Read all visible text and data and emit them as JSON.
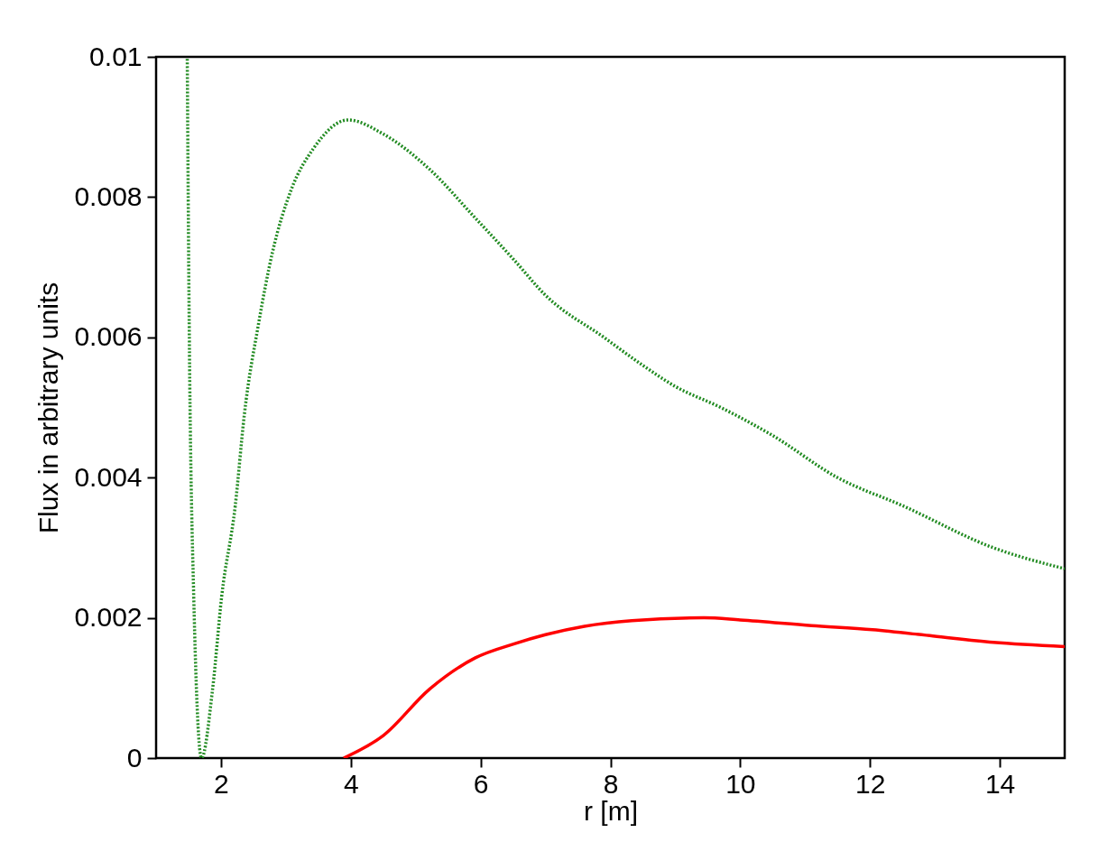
{
  "chart_data": {
    "type": "line",
    "xlabel": "r [m]",
    "ylabel": "Flux in arbitrary units",
    "xlim": [
      1,
      15
    ],
    "xticks": [
      2,
      4,
      6,
      8,
      10,
      12,
      14
    ],
    "ylim": [
      0,
      0.01
    ],
    "yticks": [
      0,
      0.002,
      0.004,
      0.006,
      0.008,
      0.01
    ],
    "grid": false,
    "series": [
      {
        "color": "#228b22",
        "line_style": "dotted",
        "x": [
          1.48,
          1.51,
          1.58,
          1.7,
          1.87,
          2.01,
          2.22,
          2.36,
          2.58,
          2.79,
          3.08,
          3.43,
          3.96,
          4.5,
          5.21,
          5.92,
          6.52,
          7.0,
          7.9,
          8.5,
          9.0,
          9.7,
          10.5,
          11.5,
          12.5,
          13.9,
          15.0
        ],
        "values": [
          0.00997,
          0.0062,
          0.0023,
          0.0,
          0.00098,
          0.0023,
          0.0036,
          0.0049,
          0.0062,
          0.0072,
          0.0081,
          0.0087,
          0.0091,
          0.0089,
          0.0084,
          0.0077,
          0.0071,
          0.0066,
          0.006,
          0.0056,
          0.0053,
          0.005,
          0.0046,
          0.004,
          0.0036,
          0.003,
          0.0027
        ]
      },
      {
        "color": "#ff0000",
        "line_style": "solid",
        "x": [
          3.89,
          4.5,
          5.21,
          5.92,
          6.52,
          7.0,
          7.6,
          8.33,
          9.44,
          10.0,
          11.1,
          12.04,
          12.97,
          13.9,
          15.0
        ],
        "values": [
          0.0,
          0.00032,
          0.00098,
          0.00143,
          0.00163,
          0.00176,
          0.00188,
          0.00196,
          0.002,
          0.00197,
          0.00189,
          0.00183,
          0.00174,
          0.00165,
          0.00159
        ]
      }
    ]
  }
}
